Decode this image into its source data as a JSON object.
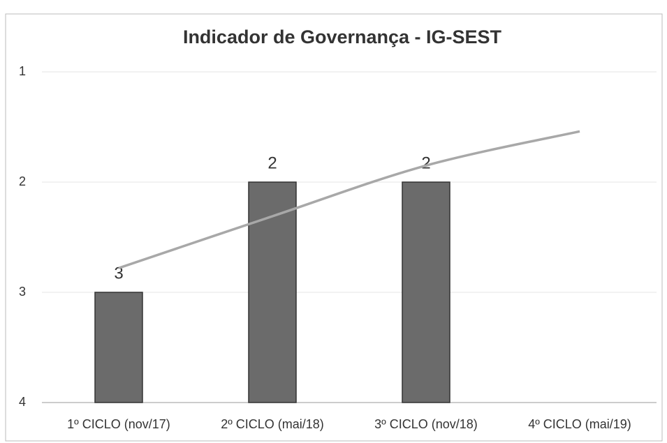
{
  "chart_data": {
    "type": "bar",
    "title": "Indicador de Governança - IG-SEST",
    "categories": [
      "1º CICLO (nov/17)",
      "2º CICLO (mai/18)",
      "3º CICLO (nov/18)",
      "4º CICLO (mai/19)"
    ],
    "values": [
      3,
      2,
      2,
      null
    ],
    "color": "#6b6b6b",
    "trendline": {
      "values": [
        2.78,
        2.31,
        1.85,
        1.54
      ],
      "color": "#a8a8a8"
    },
    "ylim": [
      4,
      1
    ],
    "yticks": [
      1,
      2,
      3,
      4
    ],
    "grid": true
  }
}
